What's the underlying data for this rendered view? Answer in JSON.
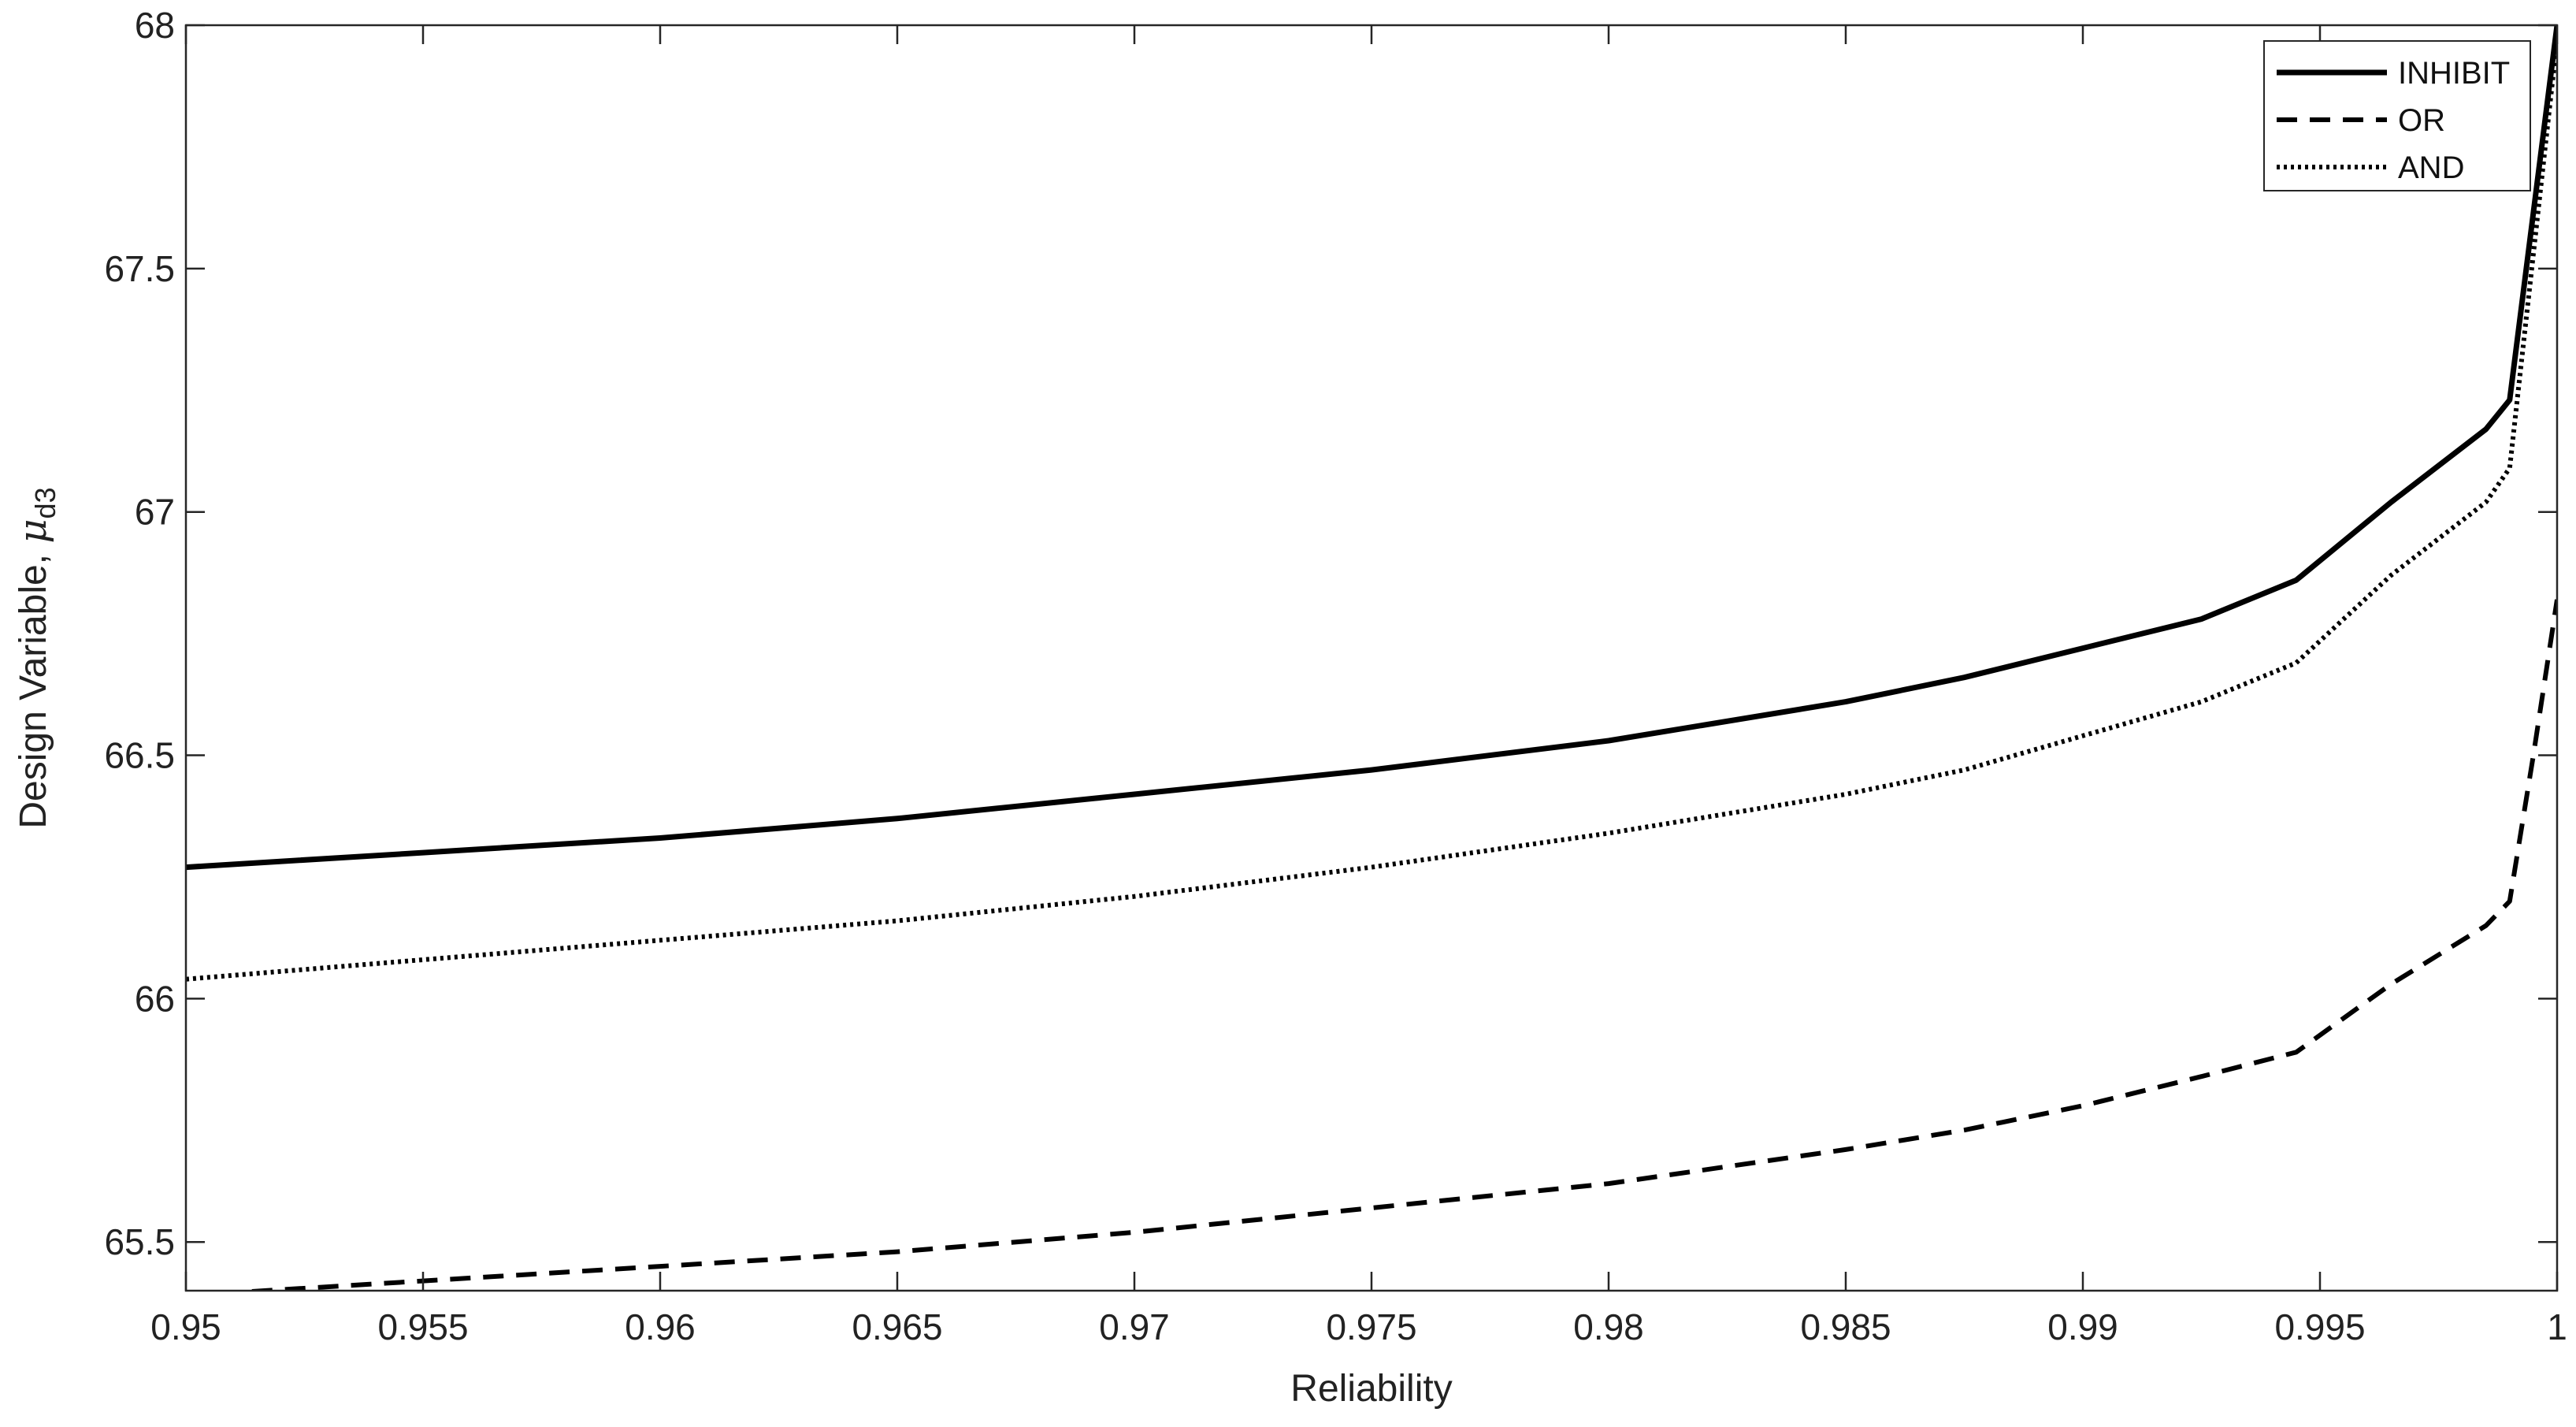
{
  "chart_data": {
    "type": "line",
    "title": "",
    "xlabel": "Reliability",
    "ylabel_prefix": "Design Variable, ",
    "ylabel_symbol": "μ",
    "ylabel_subscript": "d3",
    "xlim": [
      0.95,
      1.0
    ],
    "ylim": [
      65.4,
      68.0
    ],
    "xticks": [
      0.95,
      0.955,
      0.96,
      0.965,
      0.97,
      0.975,
      0.98,
      0.985,
      0.99,
      0.995,
      1
    ],
    "xtick_labels": [
      "0.95",
      "0.955",
      "0.96",
      "0.965",
      "0.97",
      "0.975",
      "0.98",
      "0.985",
      "0.99",
      "0.995",
      "1"
    ],
    "yticks": [
      65.5,
      66,
      66.5,
      67,
      67.5,
      68
    ],
    "ytick_labels": [
      "65.5",
      "66",
      "66.5",
      "67",
      "67.5",
      "68"
    ],
    "grid": false,
    "legend_position": "top-right",
    "series": [
      {
        "name": "INHIBIT",
        "style": "solid",
        "x": [
          0.95,
          0.955,
          0.96,
          0.965,
          0.97,
          0.975,
          0.98,
          0.985,
          0.9875,
          0.99,
          0.9925,
          0.9945,
          0.9965,
          0.9985,
          0.999,
          1.0
        ],
        "y": [
          66.27,
          66.3,
          66.33,
          66.37,
          66.42,
          66.47,
          66.53,
          66.61,
          66.66,
          66.72,
          66.78,
          66.86,
          67.02,
          67.17,
          67.23,
          68.0
        ]
      },
      {
        "name": "OR",
        "style": "dashed",
        "x": [
          0.95,
          0.955,
          0.96,
          0.965,
          0.97,
          0.975,
          0.98,
          0.985,
          0.9875,
          0.99,
          0.9925,
          0.9945,
          0.9965,
          0.9985,
          0.999,
          0.9995,
          1.0
        ],
        "y": [
          65.39,
          65.42,
          65.45,
          65.48,
          65.52,
          65.57,
          65.62,
          65.69,
          65.73,
          65.78,
          65.84,
          65.89,
          66.03,
          66.15,
          66.2,
          66.5,
          66.82
        ]
      },
      {
        "name": "AND",
        "style": "dotted",
        "x": [
          0.95,
          0.955,
          0.96,
          0.965,
          0.97,
          0.975,
          0.98,
          0.985,
          0.9875,
          0.99,
          0.9925,
          0.9945,
          0.9965,
          0.9985,
          0.999,
          1.0
        ],
        "y": [
          66.04,
          66.08,
          66.12,
          66.16,
          66.21,
          66.27,
          66.34,
          66.42,
          66.47,
          66.54,
          66.61,
          66.69,
          66.87,
          67.02,
          67.09,
          67.97
        ]
      }
    ]
  }
}
